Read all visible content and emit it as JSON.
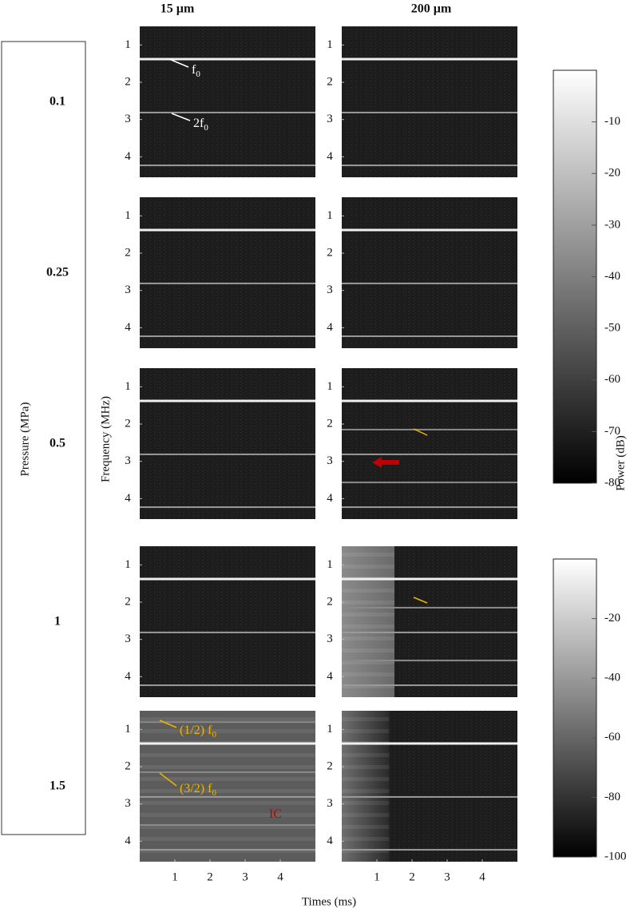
{
  "chart_data": {
    "type": "spectrogram",
    "column_titles": [
      "15 µm",
      "200 µm"
    ],
    "row_axis_label": "Pressure (MPa)",
    "row_titles": [
      "0.1",
      "0.25",
      "0.5",
      "1",
      "1.5"
    ],
    "xlabel": "Times (ms)",
    "ylabel": "Frequency (MHz)",
    "xlim": [
      0,
      5
    ],
    "xticks": [
      1,
      2,
      3,
      4
    ],
    "ylim": [
      0.5,
      4.55
    ],
    "yticks": [
      1,
      2,
      3,
      4
    ],
    "colorbar_label": "Power (dB)",
    "colorbars": [
      {
        "lim": [
          -80,
          0
        ],
        "ticks": [
          -10,
          -20,
          -30,
          -40,
          -50,
          -60,
          -70,
          -80
        ]
      },
      {
        "lim": [
          -100,
          0
        ],
        "ticks": [
          -20,
          -40,
          -60,
          -80,
          -100
        ]
      }
    ],
    "annotations": [
      {
        "text": "f",
        "sub": "0"
      },
      {
        "text": "2f",
        "sub": "0"
      },
      {
        "text": "(1/2) f",
        "sub": "0"
      },
      {
        "text": "(3/2) f",
        "sub": "0"
      },
      {
        "text": "IC"
      }
    ]
  }
}
